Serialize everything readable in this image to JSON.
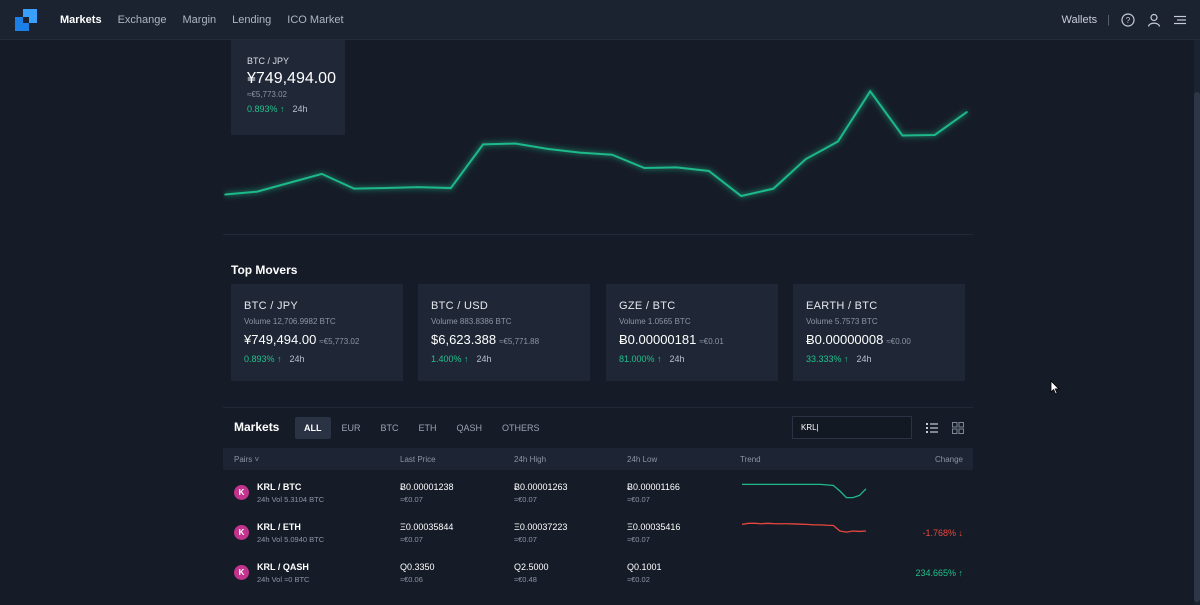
{
  "nav": {
    "links": [
      "Markets",
      "Exchange",
      "Margin",
      "Lending",
      "ICO Market"
    ],
    "active": "Markets",
    "wallets_label": "Wallets",
    "separator": "|",
    "icons": [
      "help-icon",
      "user-icon",
      "menu-icon"
    ]
  },
  "ticker": {
    "pair": "BTC / JPY",
    "price": "¥749,494.00",
    "eur": "≈€5,773.02",
    "change": "0.893%",
    "arrow": "↑",
    "period": "24h"
  },
  "chart_data": {
    "type": "line",
    "series": [
      {
        "values": [
          11,
          12,
          15,
          18,
          13,
          13.2,
          13.5,
          13.2,
          28,
          28.3,
          26.5,
          25.2,
          24.5,
          20,
          20.2,
          19,
          10.5,
          13,
          23,
          29,
          46,
          31,
          31.2,
          39
        ]
      }
    ],
    "ylim": [
      0,
      60
    ],
    "color": "#1fb98a",
    "xlabel": "",
    "ylabel": ""
  },
  "movers": {
    "title": "Top Movers",
    "cards": [
      {
        "pair": "BTC / JPY",
        "volume": "Volume 12,706.9982 BTC",
        "price": "¥749,494.00",
        "eur": "≈€5,773.02",
        "change": "0.893%",
        "arrow": "↑",
        "period": "24h"
      },
      {
        "pair": "BTC / USD",
        "volume": "Volume 883.8386 BTC",
        "price": "$6,623.388",
        "eur": "≈€5,771.88",
        "change": "1.400%",
        "arrow": "↑",
        "period": "24h"
      },
      {
        "pair": "GZE / BTC",
        "volume": "Volume 1.0565 BTC",
        "price": "Ƀ0.00000181",
        "eur": "≈€0.01",
        "change": "81.000%",
        "arrow": "↑",
        "period": "24h"
      },
      {
        "pair": "EARTH / BTC",
        "volume": "Volume 5.7573 BTC",
        "price": "Ƀ0.00000008",
        "eur": "≈€0.00",
        "change": "33.333%",
        "arrow": "↑",
        "period": "24h"
      }
    ]
  },
  "markets": {
    "title": "Markets",
    "filters": [
      "ALL",
      "EUR",
      "BTC",
      "ETH",
      "QASH",
      "OTHERS"
    ],
    "active_filter": "ALL",
    "search_value": "KRL|",
    "columns": {
      "pairs": "Pairs ˅",
      "last": "Last Price",
      "high": "24h High",
      "low": "24h Low",
      "trend": "Trend",
      "change": "Change"
    },
    "rows": [
      {
        "icon": "K",
        "pair": "KRL / BTC",
        "vol": "24h Vol 5.3104 BTC",
        "last": "Ƀ0.00001238",
        "last_eur": "≈€0.07",
        "high": "Ƀ0.00001263",
        "high_eur": "≈€0.07",
        "low": "Ƀ0.00001166",
        "low_eur": "≈€0.07",
        "change": "",
        "direction": "flat",
        "trend_color": "#1fb98a",
        "trend": [
          8,
          8,
          8,
          8,
          8,
          8,
          8,
          8,
          8,
          8,
          8,
          8,
          8,
          7.8,
          7.5,
          5,
          2,
          2,
          3,
          6
        ]
      },
      {
        "icon": "K",
        "pair": "KRL / ETH",
        "vol": "24h Vol 5.0940 BTC",
        "last": "Ξ0.00035844",
        "last_eur": "≈€0.07",
        "high": "Ξ0.00037223",
        "high_eur": "≈€0.07",
        "low": "Ξ0.00035416",
        "low_eur": "≈€0.07",
        "change": "-1.768%",
        "arrow": "↓",
        "direction": "down",
        "trend_color": "#e8473e",
        "trend": [
          8,
          8.5,
          8.5,
          8.3,
          8.5,
          8.3,
          8.3,
          8.3,
          8.2,
          8.1,
          8,
          7.8,
          7.8,
          7.6,
          7.5,
          5,
          4.5,
          5,
          4.8,
          5
        ]
      },
      {
        "icon": "K",
        "pair": "KRL / QASH",
        "vol": "24h Vol ≈0 BTC",
        "last": "Q0.3350",
        "last_eur": "≈€0.06",
        "high": "Q2.5000",
        "high_eur": "≈€0.48",
        "low": "Q0.1001",
        "low_eur": "≈€0.02",
        "change": "234.665%",
        "arrow": "↑",
        "direction": "up",
        "trend_color": "#1fb98a",
        "trend": []
      }
    ]
  }
}
